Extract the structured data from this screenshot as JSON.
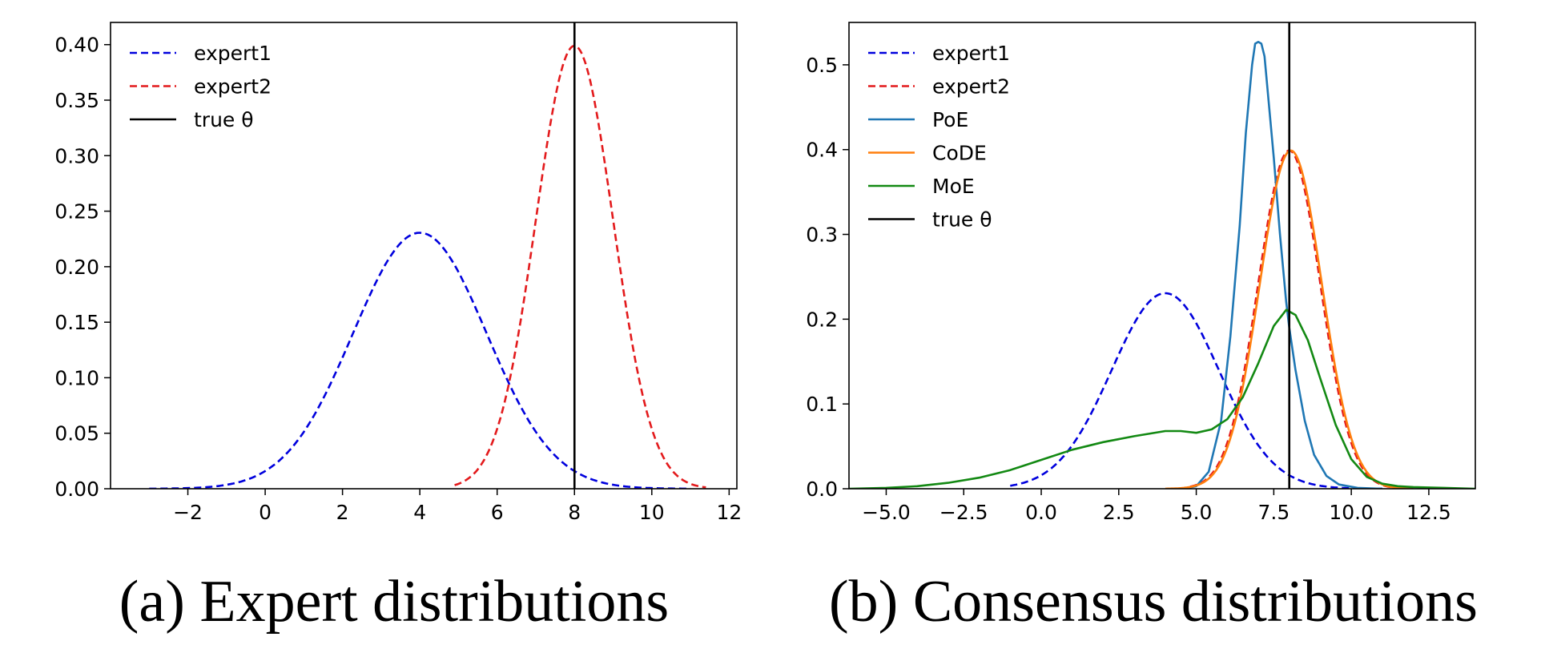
{
  "chart_data": [
    {
      "type": "line",
      "caption": "(a) Expert distributions",
      "xlim": [
        -4,
        12.2
      ],
      "ylim": [
        0,
        0.42
      ],
      "xticks": [
        -2,
        0,
        2,
        4,
        6,
        8,
        10,
        12
      ],
      "xtick_labels": [
        "−2",
        "0",
        "2",
        "4",
        "6",
        "8",
        "10",
        "12"
      ],
      "yticks": [
        0,
        0.05,
        0.1,
        0.15,
        0.2,
        0.25,
        0.3,
        0.35,
        0.4
      ],
      "ytick_labels": [
        "0.00",
        "0.05",
        "0.10",
        "0.15",
        "0.20",
        "0.25",
        "0.30",
        "0.35",
        "0.40"
      ],
      "legend_position": "upper-left",
      "series": [
        {
          "name": "expert1",
          "label": "expert1",
          "color": "#0000dd",
          "style": "dashed",
          "kind": "gaussian",
          "mean": 4,
          "std": 1.73,
          "x_range": [
            -3,
            11
          ]
        },
        {
          "name": "expert2",
          "label": "expert2",
          "color": "#e31a1c",
          "style": "dashed",
          "kind": "gaussian",
          "mean": 8,
          "std": 1.0,
          "x_range": [
            4.9,
            11.4
          ]
        },
        {
          "name": "true-theta",
          "label": "true θ",
          "color": "#000000",
          "style": "solid",
          "kind": "vline",
          "x": 8
        }
      ]
    },
    {
      "type": "line",
      "caption": "(b) Consensus distributions",
      "xlim": [
        -6.2,
        14.0
      ],
      "ylim": [
        0,
        0.55
      ],
      "xticks": [
        -5,
        -2.5,
        0,
        2.5,
        5,
        7.5,
        10,
        12.5
      ],
      "xtick_labels": [
        "−5.0",
        "−2.5",
        "0.0",
        "2.5",
        "5.0",
        "7.5",
        "10.0",
        "12.5"
      ],
      "yticks": [
        0,
        0.1,
        0.2,
        0.3,
        0.4,
        0.5
      ],
      "ytick_labels": [
        "0.0",
        "0.1",
        "0.2",
        "0.3",
        "0.4",
        "0.5"
      ],
      "legend_position": "upper-left",
      "series": [
        {
          "name": "expert1",
          "label": "expert1",
          "color": "#0000dd",
          "style": "dashed",
          "kind": "gaussian",
          "mean": 4,
          "std": 1.73,
          "x_range": [
            -1,
            11
          ]
        },
        {
          "name": "expert2",
          "label": "expert2",
          "color": "#e31a1c",
          "style": "dashed",
          "kind": "gaussian",
          "mean": 8,
          "std": 1.0,
          "x_range": [
            4.8,
            11.5
          ]
        },
        {
          "name": "PoE",
          "label": "PoE",
          "color": "#1f77b4",
          "style": "solid",
          "kind": "points",
          "x": [
            4.6,
            5.0,
            5.4,
            5.8,
            6.1,
            6.4,
            6.6,
            6.8,
            6.9,
            7.0,
            7.1,
            7.2,
            7.35,
            7.5,
            7.7,
            7.9,
            8.0,
            8.2,
            8.5,
            8.8,
            9.2,
            9.6,
            10.2,
            11.0
          ],
          "y": [
            0.0,
            0.003,
            0.02,
            0.08,
            0.18,
            0.31,
            0.42,
            0.5,
            0.525,
            0.527,
            0.525,
            0.51,
            0.45,
            0.39,
            0.3,
            0.22,
            0.19,
            0.14,
            0.08,
            0.04,
            0.015,
            0.005,
            0.001,
            0.0
          ]
        },
        {
          "name": "CoDE",
          "label": "CoDE",
          "color": "#ff7f0e",
          "style": "solid",
          "kind": "gaussian",
          "mean": 8.05,
          "std": 1.0,
          "x_range": [
            4.0,
            12.0
          ]
        },
        {
          "name": "MoE",
          "label": "MoE",
          "color": "#138913",
          "style": "solid",
          "kind": "points",
          "x": [
            -6.2,
            -5.0,
            -4.0,
            -3.0,
            -2.0,
            -1.0,
            0.0,
            1.0,
            2.0,
            3.0,
            4.0,
            4.5,
            5.0,
            5.5,
            6.0,
            6.5,
            7.0,
            7.5,
            7.9,
            8.2,
            8.6,
            9.0,
            9.5,
            10.0,
            10.5,
            11.0,
            11.5,
            12.0,
            13.0,
            14.0
          ],
          "y": [
            0.0,
            0.001,
            0.003,
            0.007,
            0.013,
            0.022,
            0.034,
            0.046,
            0.055,
            0.062,
            0.068,
            0.068,
            0.066,
            0.07,
            0.082,
            0.108,
            0.148,
            0.192,
            0.211,
            0.205,
            0.175,
            0.13,
            0.075,
            0.035,
            0.014,
            0.006,
            0.003,
            0.002,
            0.001,
            0.0
          ]
        },
        {
          "name": "true-theta",
          "label": "true θ",
          "color": "#000000",
          "style": "solid",
          "kind": "vline",
          "x": 8
        }
      ]
    }
  ]
}
